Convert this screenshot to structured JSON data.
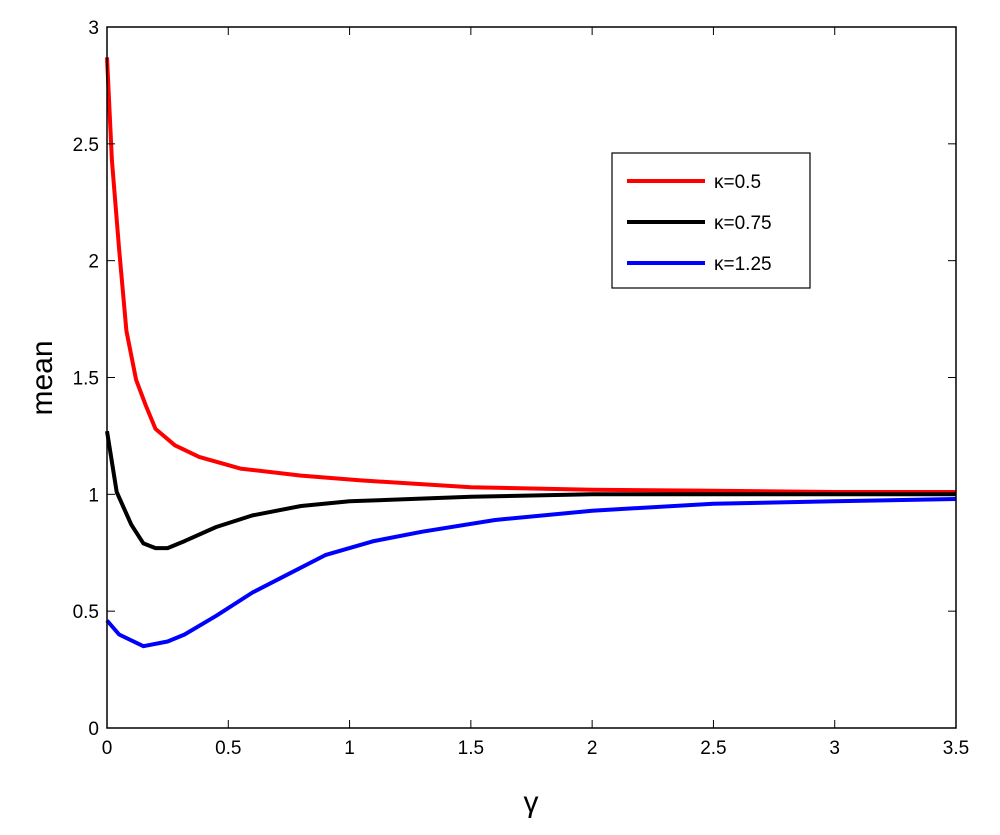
{
  "chart_data": {
    "type": "line",
    "title": "",
    "xlabel": "γ",
    "ylabel": "mean",
    "xlim": [
      0,
      3.5
    ],
    "ylim": [
      0,
      3
    ],
    "xticks": [
      "0",
      "0.5",
      "1",
      "1.5",
      "2",
      "2.5",
      "3",
      "3.5"
    ],
    "yticks": [
      "0",
      "0.5",
      "1",
      "1.5",
      "2",
      "2.5",
      "3"
    ],
    "grid": false,
    "legend_position": "top-right",
    "series": [
      {
        "name": "κ=0.5",
        "color": "#ff0000",
        "x": [
          0,
          0.02,
          0.05,
          0.08,
          0.12,
          0.16,
          0.2,
          0.28,
          0.38,
          0.55,
          0.8,
          1.04,
          1.5,
          2.0,
          2.5,
          3.0,
          3.5
        ],
        "y": [
          2.87,
          2.43,
          2.05,
          1.7,
          1.49,
          1.38,
          1.28,
          1.21,
          1.16,
          1.11,
          1.08,
          1.06,
          1.03,
          1.02,
          1.015,
          1.01,
          1.01
        ]
      },
      {
        "name": "κ=0.75",
        "color": "#000000",
        "x": [
          0,
          0.04,
          0.1,
          0.15,
          0.2,
          0.25,
          0.32,
          0.45,
          0.6,
          0.8,
          1.0,
          1.5,
          2.0,
          2.5,
          3.0,
          3.5
        ],
        "y": [
          1.27,
          1.01,
          0.87,
          0.79,
          0.77,
          0.77,
          0.8,
          0.86,
          0.91,
          0.95,
          0.97,
          0.99,
          1.0,
          1.0,
          1.0,
          1.0
        ]
      },
      {
        "name": "κ=1.25",
        "color": "#0000ff",
        "x": [
          0,
          0.05,
          0.15,
          0.25,
          0.32,
          0.45,
          0.6,
          0.75,
          0.9,
          1.1,
          1.3,
          1.6,
          2.0,
          2.5,
          3.0,
          3.5
        ],
        "y": [
          0.46,
          0.4,
          0.35,
          0.37,
          0.4,
          0.48,
          0.58,
          0.66,
          0.74,
          0.8,
          0.84,
          0.89,
          0.93,
          0.96,
          0.97,
          0.98
        ]
      }
    ]
  }
}
